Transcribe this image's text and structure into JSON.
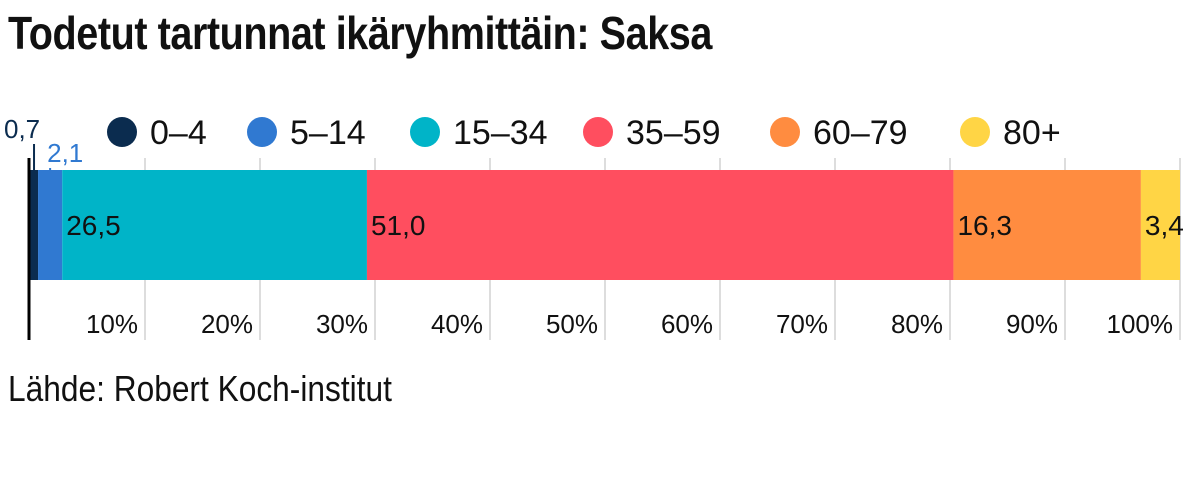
{
  "title": "Todetut tartunnat ikäryhmittäin: Saksa",
  "source": "Lähde: Robert Koch-institut",
  "chart_data": {
    "type": "bar",
    "orientation": "horizontal-stacked",
    "xlim": [
      0,
      100
    ],
    "ticks": [
      {
        "value": 10,
        "label": "10%"
      },
      {
        "value": 20,
        "label": "20%"
      },
      {
        "value": 30,
        "label": "30%"
      },
      {
        "value": 40,
        "label": "40%"
      },
      {
        "value": 50,
        "label": "50%"
      },
      {
        "value": 60,
        "label": "60%"
      },
      {
        "value": 70,
        "label": "70%"
      },
      {
        "value": 80,
        "label": "80%"
      },
      {
        "value": 90,
        "label": "90%"
      },
      {
        "value": 100,
        "label": "100%"
      }
    ],
    "legend_position": "top",
    "series": [
      {
        "name": "0–4",
        "value": 0.7,
        "label": "0,7",
        "color": "#0b2c4f"
      },
      {
        "name": "5–14",
        "value": 2.1,
        "label": "2,1",
        "color": "#3079d1"
      },
      {
        "name": "15–34",
        "value": 26.5,
        "label": "26,5",
        "color": "#00b4c8"
      },
      {
        "name": "35–59",
        "value": 51.0,
        "label": "51,0",
        "color": "#ff4e5f"
      },
      {
        "name": "60–79",
        "value": 16.3,
        "label": "16,3",
        "color": "#ff8c40"
      },
      {
        "name": "80+",
        "value": 3.4,
        "label": "3,4",
        "color": "#ffd545"
      }
    ]
  }
}
